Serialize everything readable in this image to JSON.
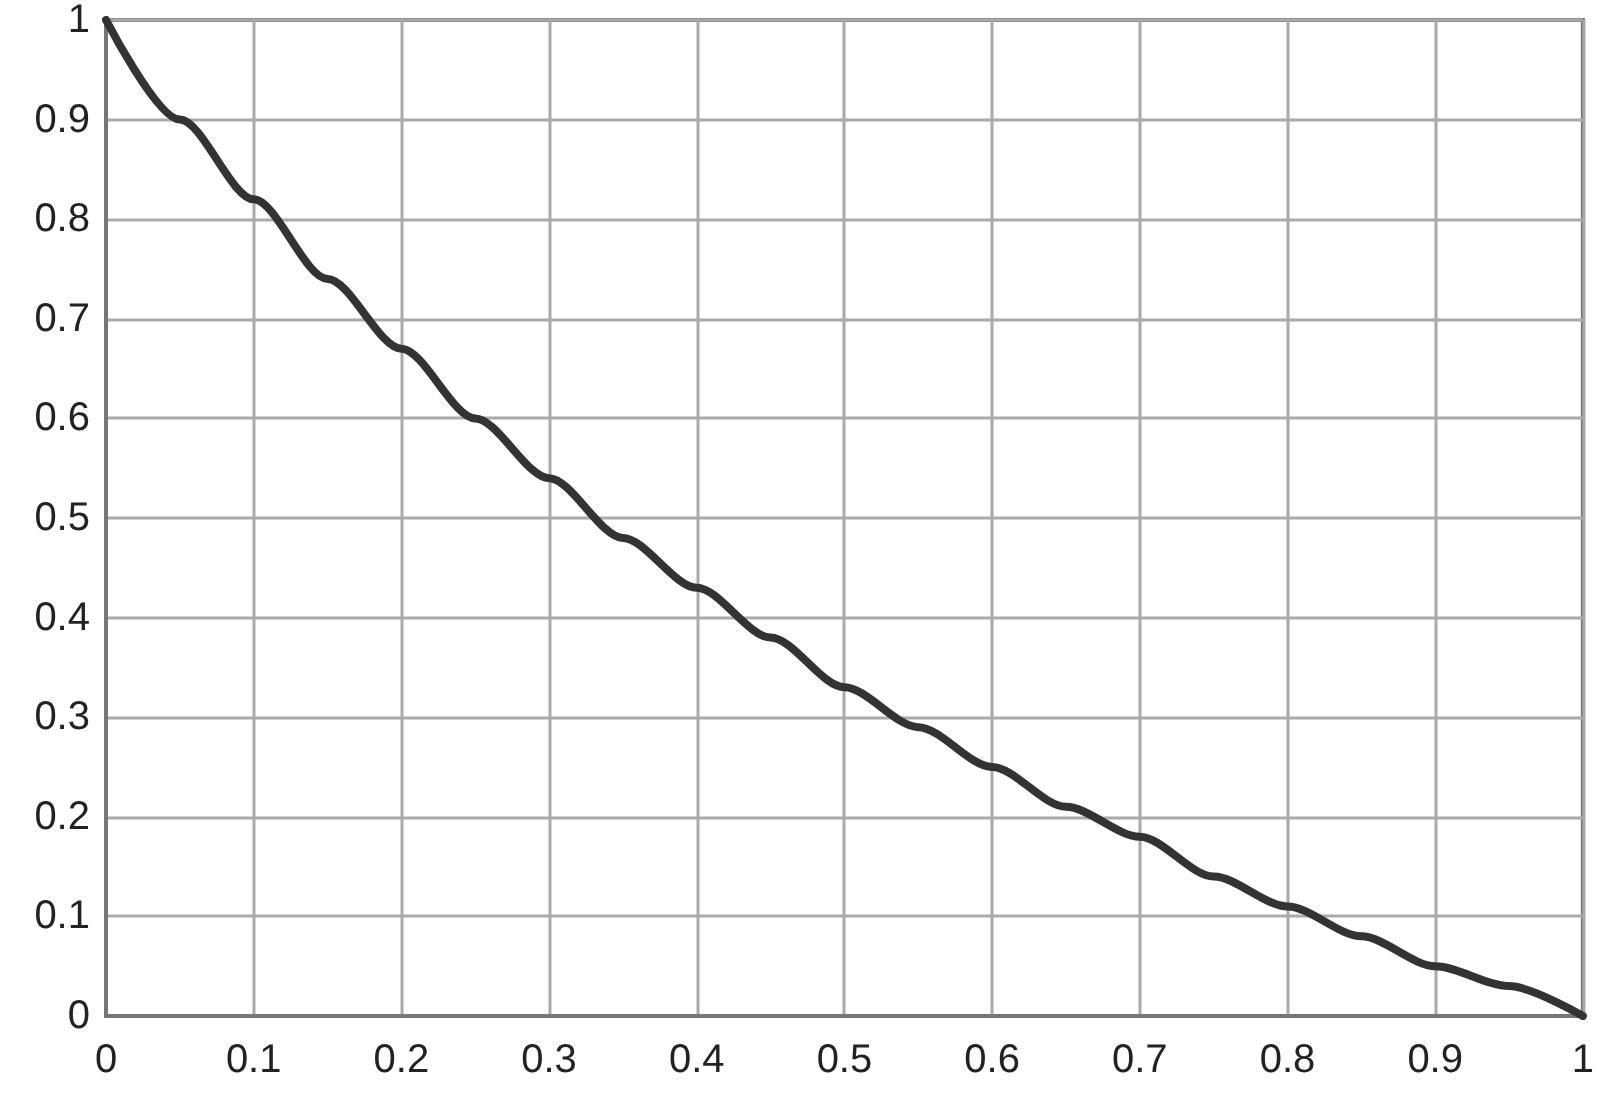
{
  "chart_data": {
    "type": "line",
    "x": [
      0,
      0.05,
      0.1,
      0.15,
      0.2,
      0.25,
      0.3,
      0.35,
      0.4,
      0.45,
      0.5,
      0.55,
      0.6,
      0.65,
      0.7,
      0.75,
      0.8,
      0.85,
      0.9,
      0.95,
      1
    ],
    "series": [
      {
        "color": "#333333",
        "values": [
          1,
          0.9,
          0.82,
          0.74,
          0.67,
          0.6,
          0.54,
          0.48,
          0.43,
          0.38,
          0.33,
          0.29,
          0.25,
          0.21,
          0.18,
          0.14,
          0.11,
          0.08,
          0.05,
          0.03,
          0
        ]
      }
    ],
    "xlim": [
      0,
      1
    ],
    "xticks": [
      0,
      0.1,
      0.2,
      0.3,
      0.4,
      0.5,
      0.6,
      0.7,
      0.8,
      0.9,
      1
    ],
    "ylim": [
      0,
      1
    ],
    "yticks": [
      0,
      0.1,
      0.2,
      0.3,
      0.4,
      0.5,
      0.6,
      0.7,
      0.8,
      0.9,
      1
    ],
    "grid": true,
    "marker": "none",
    "line_style": "solid"
  }
}
